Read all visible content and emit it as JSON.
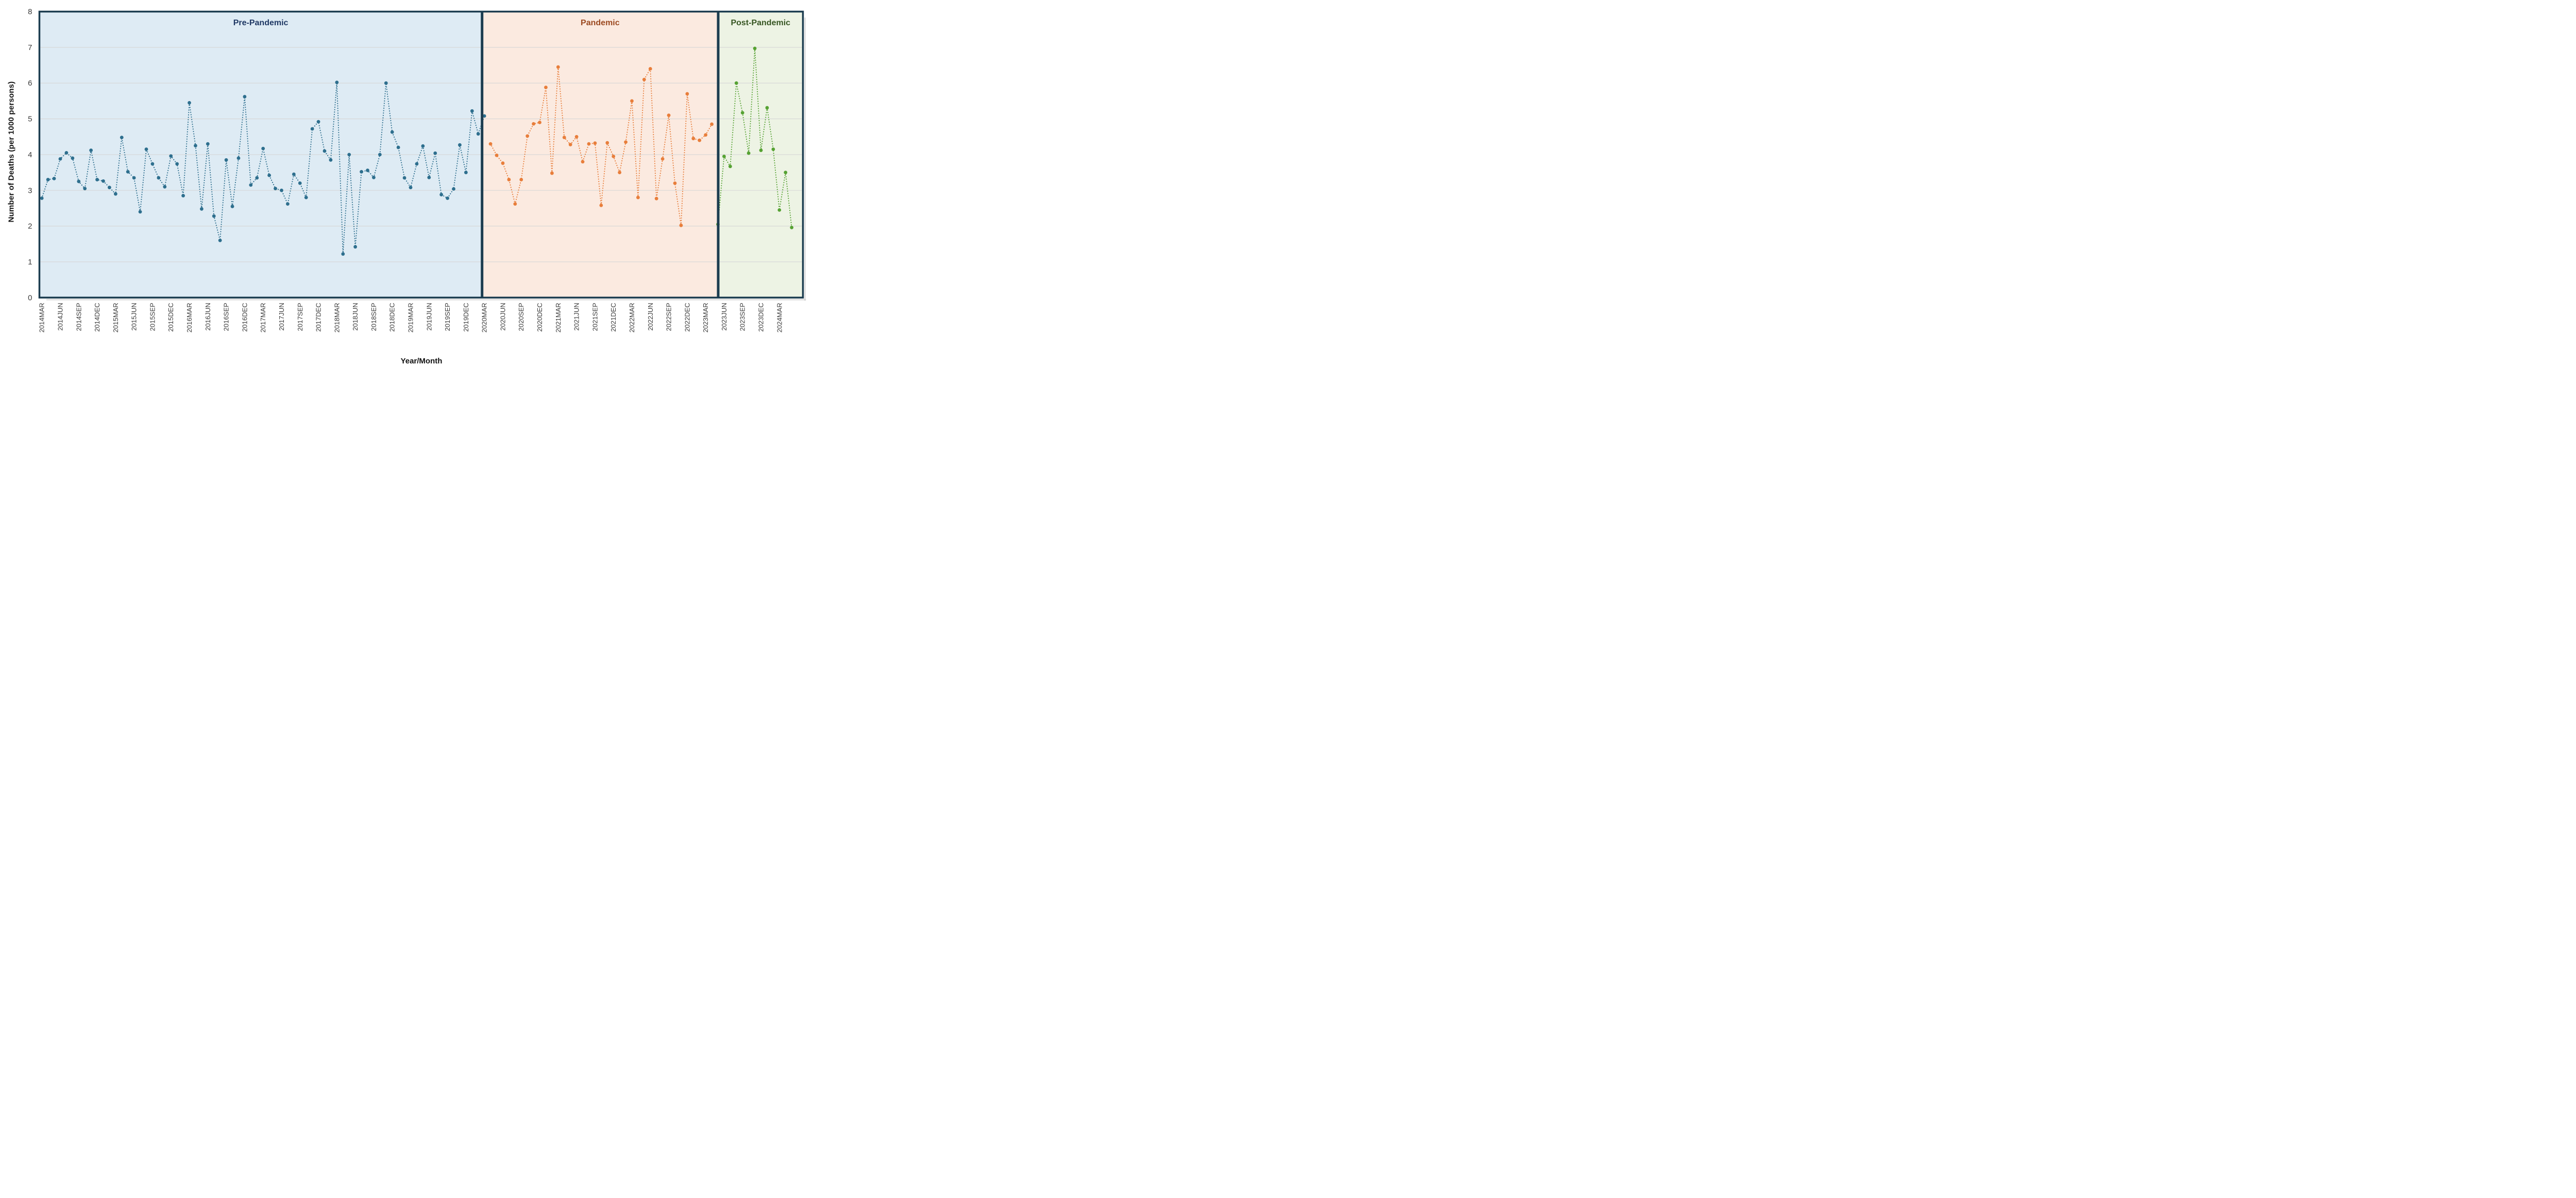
{
  "chart": {
    "y_axis_title": "Number of Deaths (per 1000 persons)",
    "x_axis_title": "Year/Month",
    "y_tick_labels": [
      "0",
      "1",
      "2",
      "3",
      "4",
      "5",
      "6",
      "7",
      "8"
    ],
    "x_tick_labels": [
      "2014MAR",
      "2014JUN",
      "2014SEP",
      "2014DEC",
      "2015MAR",
      "2015JUN",
      "2015SEP",
      "2015DEC",
      "2016MAR",
      "2016JUN",
      "2016SEP",
      "2016DEC",
      "2017MAR",
      "2017JUN",
      "2017SEP",
      "2017DEC",
      "2018MAR",
      "2018JUN",
      "2018SEP",
      "2018DEC",
      "2019MAR",
      "2019JUN",
      "2019SEP",
      "2019DEC",
      "2020MAR",
      "2020JUN",
      "2020SEP",
      "2020DEC",
      "2021MAR",
      "2021JUN",
      "2021SEP",
      "2021DEC",
      "2022MAR",
      "2022JUN",
      "2022SEP",
      "2022DEC",
      "2023MAR",
      "2023JUN",
      "2023SEP",
      "2023DEC",
      "2024MAR"
    ],
    "regions": [
      {
        "label": "Pre-Pandemic",
        "label_color": "#1F3864",
        "fill": "#DEEBF4"
      },
      {
        "label": "Pandemic",
        "label_color": "#9C4A21",
        "fill": "#FBEAE0"
      },
      {
        "label": "Post-Pandemic",
        "label_color": "#375623",
        "fill": "#EDF3E4"
      }
    ],
    "frame_color": "#1C3D50",
    "gridline_color": "#D6D6D6",
    "tick_label_color": "#3B3B3B"
  },
  "chart_data": {
    "type": "line",
    "title": "",
    "xlabel": "Year/Month",
    "ylabel": "Number of Deaths (per 1000 persons)",
    "ylim": [
      0,
      8
    ],
    "grid": true,
    "marker": "dot",
    "line_style": "dotted",
    "series": [
      {
        "name": "Pre-Pandemic",
        "color": "#2E6F8E",
        "months": [
          "2014MAR",
          "2014APR",
          "2014MAY",
          "2014JUN",
          "2014JUL",
          "2014AUG",
          "2014SEP",
          "2014OCT",
          "2014NOV",
          "2014DEC",
          "2015JAN",
          "2015FEB",
          "2015MAR",
          "2015APR",
          "2015MAY",
          "2015JUN",
          "2015JUL",
          "2015AUG",
          "2015SEP",
          "2015OCT",
          "2015NOV",
          "2015DEC",
          "2016JAN",
          "2016FEB",
          "2016MAR",
          "2016APR",
          "2016MAY",
          "2016JUN",
          "2016JUL",
          "2016AUG",
          "2016SEP",
          "2016OCT",
          "2016NOV",
          "2016DEC",
          "2017JAN",
          "2017FEB",
          "2017MAR",
          "2017APR",
          "2017MAY",
          "2017JUN",
          "2017JUL",
          "2017AUG",
          "2017SEP",
          "2017OCT",
          "2017NOV",
          "2017DEC",
          "2018JAN",
          "2018FEB",
          "2018MAR",
          "2018APR",
          "2018MAY",
          "2018JUN",
          "2018JUL",
          "2018AUG",
          "2018SEP",
          "2018OCT",
          "2018NOV",
          "2018DEC",
          "2019JAN",
          "2019FEB",
          "2019MAR",
          "2019APR",
          "2019MAY",
          "2019JUN",
          "2019JUL",
          "2019AUG",
          "2019SEP",
          "2019OCT",
          "2019NOV",
          "2019DEC",
          "2020JAN",
          "2020FEB",
          "2020MAR"
        ],
        "values": [
          2.78,
          3.3,
          3.33,
          3.88,
          4.05,
          3.9,
          3.25,
          3.05,
          4.12,
          3.3,
          3.26,
          3.08,
          2.9,
          4.48,
          3.52,
          3.35,
          2.4,
          4.15,
          3.74,
          3.35,
          3.1,
          3.96,
          3.74,
          2.85,
          5.45,
          4.25,
          2.48,
          4.3,
          2.28,
          1.6,
          3.85,
          2.55,
          3.9,
          5.62,
          3.15,
          3.35,
          4.17,
          3.42,
          3.05,
          3.0,
          2.62,
          3.45,
          3.2,
          2.8,
          4.72,
          4.92,
          4.1,
          3.85,
          6.02,
          1.22,
          4.0,
          1.42,
          3.52,
          3.56,
          3.36,
          4.0,
          6.0,
          4.63,
          4.2,
          3.35,
          3.08,
          3.74,
          4.24,
          3.36,
          4.04,
          2.88,
          2.78,
          3.04,
          4.27,
          3.5,
          5.22,
          4.58,
          5.08
        ]
      },
      {
        "name": "Pandemic",
        "color": "#E87E3B",
        "months": [
          "2020APR",
          "2020MAY",
          "2020JUN",
          "2020JUL",
          "2020AUG",
          "2020SEP",
          "2020OCT",
          "2020NOV",
          "2020DEC",
          "2021JAN",
          "2021FEB",
          "2021MAR",
          "2021APR",
          "2021MAY",
          "2021JUN",
          "2021JUL",
          "2021AUG",
          "2021SEP",
          "2021OCT",
          "2021NOV",
          "2021DEC",
          "2022JAN",
          "2022FEB",
          "2022MAR",
          "2022APR",
          "2022MAY",
          "2022JUN",
          "2022JUL",
          "2022AUG",
          "2022SEP",
          "2022OCT",
          "2022NOV",
          "2022DEC",
          "2023JAN",
          "2023FEB",
          "2023MAR",
          "2023APR"
        ],
        "values": [
          4.3,
          3.98,
          3.76,
          3.3,
          2.62,
          3.3,
          4.52,
          4.86,
          4.9,
          5.88,
          3.48,
          6.45,
          4.48,
          4.28,
          4.5,
          3.8,
          4.3,
          4.32,
          2.58,
          4.33,
          3.95,
          3.5,
          4.35,
          5.5,
          2.8,
          6.1,
          6.4,
          2.77,
          3.88,
          5.1,
          3.2,
          2.02,
          5.7,
          4.45,
          4.4,
          4.55,
          4.85
        ]
      },
      {
        "name": "Post-Pandemic",
        "color": "#56A233",
        "months": [
          "2023MAY",
          "2023JUN",
          "2023JUL",
          "2023AUG",
          "2023SEP",
          "2023OCT",
          "2023NOV",
          "2023DEC",
          "2024JAN",
          "2024FEB",
          "2024MAR",
          "2024APR",
          "2024MAY"
        ],
        "values": [
          2.05,
          3.95,
          3.67,
          6.0,
          5.17,
          4.04,
          6.97,
          4.12,
          5.31,
          4.15,
          2.45,
          3.5,
          1.96
        ]
      }
    ]
  }
}
